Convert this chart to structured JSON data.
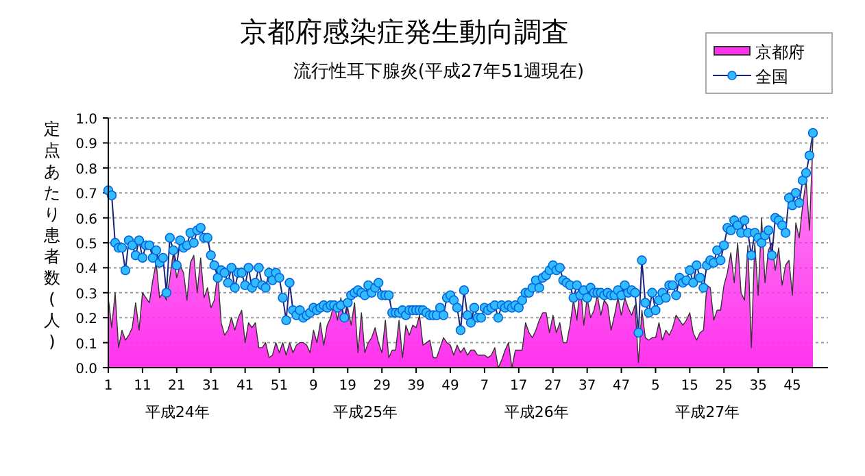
{
  "chart_data": {
    "type": "line",
    "title": "京都府感染症発生動向調査",
    "subtitle": "流行性耳下腺炎(平成27年51週現在)",
    "ylabel": "定点あたり患者数(人)",
    "categories": [
      "1",
      null,
      null,
      null,
      null,
      null,
      null,
      null,
      null,
      null,
      "11",
      null,
      null,
      null,
      null,
      null,
      null,
      null,
      null,
      null,
      "21",
      null,
      null,
      null,
      null,
      null,
      null,
      null,
      null,
      null,
      "31",
      null,
      null,
      null,
      null,
      null,
      null,
      null,
      null,
      null,
      "41",
      null,
      null,
      null,
      null,
      null,
      null,
      null,
      null,
      null,
      "51",
      null,
      null,
      null,
      null,
      null,
      null,
      null,
      null,
      null,
      "9",
      null,
      null,
      null,
      null,
      null,
      null,
      null,
      null,
      null,
      "19",
      null,
      null,
      null,
      null,
      null,
      null,
      null,
      null,
      null,
      "29",
      null,
      null,
      null,
      null,
      null,
      null,
      null,
      null,
      null,
      "39",
      null,
      null,
      null,
      null,
      null,
      null,
      null,
      null,
      null,
      "49",
      null,
      null,
      null,
      null,
      null,
      null,
      null,
      null,
      null,
      "7",
      null,
      null,
      null,
      null,
      null,
      null,
      null,
      null,
      null,
      "17",
      null,
      null,
      null,
      null,
      null,
      null,
      null,
      null,
      null,
      "27",
      null,
      null,
      null,
      null,
      null,
      null,
      null,
      null,
      null,
      "37",
      null,
      null,
      null,
      null,
      null,
      null,
      null,
      null,
      null,
      "47",
      null,
      null,
      null,
      null,
      null,
      null,
      null,
      null,
      null,
      "5",
      null,
      null,
      null,
      null,
      null,
      null,
      null,
      null,
      null,
      "15",
      null,
      null,
      null,
      null,
      null,
      null,
      null,
      null,
      null,
      "25",
      null,
      null,
      null,
      null,
      null,
      null,
      null,
      null,
      null,
      "35",
      null,
      null,
      null,
      null,
      null,
      null,
      null,
      null,
      null,
      "45",
      null,
      null,
      null,
      null,
      null,
      null
    ],
    "series": [
      {
        "name": "京都府",
        "type": "area",
        "color": "#ff33ee",
        "values": [
          0.28,
          0.16,
          0.3,
          0.08,
          0.15,
          0.11,
          0.13,
          0.16,
          0.26,
          0.15,
          0.3,
          0.28,
          0.26,
          0.35,
          0.42,
          0.28,
          0.3,
          0.27,
          0.36,
          0.46,
          0.36,
          0.41,
          0.38,
          0.27,
          0.42,
          0.45,
          0.3,
          0.44,
          0.28,
          0.32,
          0.24,
          0.27,
          0.38,
          0.18,
          0.13,
          0.15,
          0.2,
          0.15,
          0.2,
          0.23,
          0.1,
          0.18,
          0.16,
          0.18,
          0.08,
          0.08,
          0.1,
          0.04,
          0.05,
          0.1,
          0.06,
          0.1,
          0.05,
          0.1,
          0.06,
          0.09,
          0.1,
          0.1,
          0.09,
          0.06,
          0.15,
          0.1,
          0.18,
          0.09,
          0.17,
          0.2,
          0.26,
          0.19,
          0.28,
          0.19,
          0.24,
          0.17,
          0.26,
          0.06,
          0.22,
          0.06,
          0.1,
          0.12,
          0.16,
          0.1,
          0.06,
          0.19,
          0.04,
          0.07,
          0.07,
          0.19,
          0.04,
          0.17,
          0.13,
          0.17,
          0.16,
          0.21,
          0.09,
          0.1,
          0.11,
          0.04,
          0.04,
          0.08,
          0.12,
          0.1,
          0.09,
          0.05,
          0.09,
          0.06,
          0.08,
          0.05,
          0.07,
          0.07,
          0.05,
          0.05,
          0.05,
          0.04,
          0.05,
          0.08,
          0.0,
          0.03,
          0.07,
          0.1,
          0.0,
          0.07,
          0.07,
          0.07,
          0.18,
          0.14,
          0.12,
          0.15,
          0.19,
          0.22,
          0.22,
          0.14,
          0.21,
          0.14,
          0.18,
          0.1,
          0.1,
          0.17,
          0.27,
          0.19,
          0.34,
          0.17,
          0.28,
          0.2,
          0.23,
          0.29,
          0.21,
          0.27,
          0.25,
          0.15,
          0.21,
          0.28,
          0.21,
          0.28,
          0.24,
          0.21,
          0.25,
          0.02,
          0.23,
          0.12,
          0.11,
          0.12,
          0.12,
          0.18,
          0.11,
          0.15,
          0.13,
          0.16,
          0.21,
          0.19,
          0.17,
          0.19,
          0.22,
          0.14,
          0.11,
          0.14,
          0.15,
          0.33,
          0.32,
          0.19,
          0.23,
          0.23,
          0.33,
          0.38,
          0.46,
          0.34,
          0.5,
          0.3,
          0.27,
          0.49,
          0.08,
          0.5,
          0.29,
          0.6,
          0.34,
          0.47,
          0.5,
          0.39,
          0.48,
          0.33,
          0.41,
          0.43,
          0.29,
          0.58,
          0.52,
          0.65,
          0.75,
          0.55,
          0.92
        ]
      },
      {
        "name": "全国",
        "color": "#33bbff",
        "marker": "circle",
        "values": [
          0.71,
          0.69,
          0.5,
          0.48,
          0.48,
          0.39,
          0.51,
          0.49,
          0.45,
          0.51,
          0.44,
          0.49,
          0.49,
          0.44,
          0.47,
          0.42,
          0.44,
          0.3,
          0.52,
          0.47,
          0.41,
          0.51,
          0.48,
          0.49,
          0.54,
          0.5,
          0.55,
          0.56,
          0.52,
          0.52,
          0.45,
          0.41,
          0.36,
          0.39,
          0.38,
          0.34,
          0.4,
          0.32,
          0.38,
          0.38,
          0.33,
          0.4,
          0.32,
          0.34,
          0.4,
          0.33,
          0.32,
          0.38,
          0.35,
          0.38,
          0.36,
          0.28,
          0.19,
          0.34,
          0.23,
          0.21,
          0.23,
          0.2,
          0.21,
          0.22,
          0.24,
          0.23,
          0.24,
          0.25,
          0.24,
          0.25,
          0.25,
          0.24,
          0.25,
          0.2,
          0.26,
          0.29,
          0.3,
          0.31,
          0.3,
          0.29,
          0.33,
          0.3,
          0.32,
          0.34,
          0.29,
          0.29,
          0.29,
          0.22,
          0.22,
          0.22,
          0.23,
          0.21,
          0.23,
          0.23,
          0.23,
          0.23,
          0.23,
          0.22,
          0.21,
          0.21,
          0.21,
          0.24,
          0.21,
          0.28,
          0.29,
          0.27,
          0.24,
          0.15,
          0.31,
          0.21,
          0.18,
          0.24,
          0.2,
          0.2,
          0.24,
          0.23,
          0.24,
          0.25,
          0.2,
          0.25,
          0.24,
          0.25,
          0.24,
          0.25,
          0.24,
          0.27,
          0.3,
          0.3,
          0.32,
          0.35,
          0.32,
          0.36,
          0.37,
          0.39,
          0.41,
          0.39,
          0.4,
          0.35,
          0.34,
          0.33,
          0.28,
          0.33,
          0.29,
          0.31,
          0.28,
          0.32,
          0.3,
          0.3,
          0.3,
          0.29,
          0.3,
          0.29,
          0.29,
          0.31,
          0.29,
          0.33,
          0.3,
          0.31,
          0.3,
          0.14,
          0.43,
          0.26,
          0.22,
          0.3,
          0.23,
          0.27,
          0.3,
          0.28,
          0.33,
          0.33,
          0.29,
          0.36,
          0.34,
          0.35,
          0.39,
          0.34,
          0.41,
          0.36,
          0.32,
          0.41,
          0.43,
          0.42,
          0.47,
          0.43,
          0.49,
          0.56,
          0.55,
          0.59,
          0.57,
          0.54,
          0.59,
          0.54,
          0.45,
          0.54,
          0.52,
          0.5,
          0.53,
          0.55,
          0.45,
          0.6,
          0.59,
          0.57,
          0.54,
          0.68,
          0.65,
          0.7,
          0.66,
          0.75,
          0.78,
          0.85,
          0.94
        ]
      }
    ],
    "ylim": [
      0,
      1
    ],
    "yticks": [
      {
        "value": 0,
        "label": "0.0"
      },
      0.1,
      0.2,
      0.3,
      0.4,
      0.5,
      0.6,
      0.7,
      0.8,
      0.9,
      {
        "value": 1,
        "label": "1.0"
      }
    ],
    "grid": "y",
    "legend": "top right",
    "annotations": [
      "平成24年",
      "平成25年",
      "平成26年",
      "平成27年"
    ]
  }
}
